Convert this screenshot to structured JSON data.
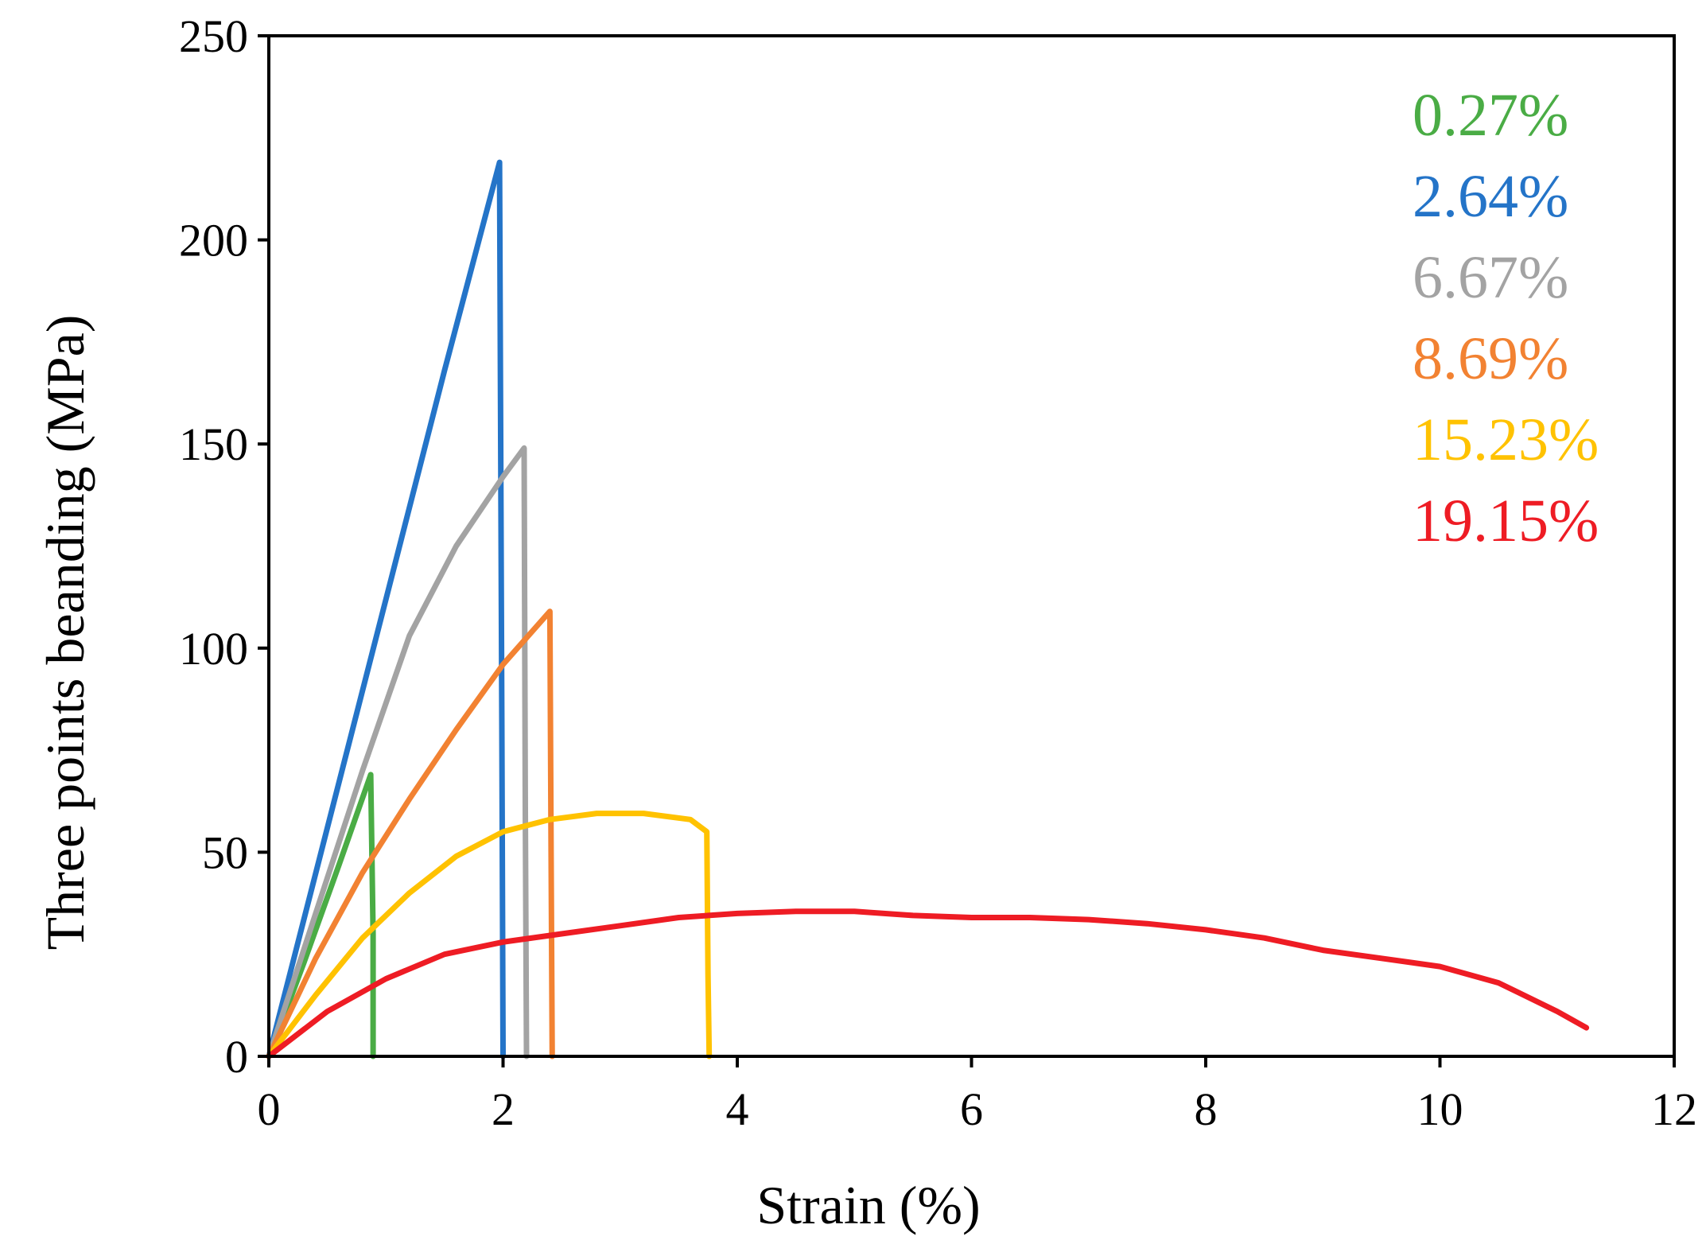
{
  "chart_data": {
    "type": "line",
    "title": "",
    "xlabel": "Strain (%)",
    "ylabel": "Three points beanding (MPa)",
    "xlim": [
      0,
      12
    ],
    "ylim": [
      0,
      250
    ],
    "xticks": [
      0,
      2,
      4,
      6,
      8,
      10,
      12
    ],
    "yticks": [
      0,
      50,
      100,
      150,
      200,
      250
    ],
    "xtick_labels": [
      "0",
      "2",
      "4",
      "6",
      "8",
      "10",
      "12"
    ],
    "ytick_labels": [
      "0",
      "50",
      "100",
      "150",
      "200",
      "250"
    ],
    "grid": false,
    "legend_position": "top-right",
    "series": [
      {
        "name": "0.27%",
        "color": "#4aac45",
        "x": [
          0,
          0.3,
          0.6,
          0.87,
          0.89,
          0.89
        ],
        "y": [
          0,
          23,
          47,
          69,
          30,
          0
        ]
      },
      {
        "name": "2.64%",
        "color": "#2474c8",
        "x": [
          0,
          0.5,
          1.0,
          1.5,
          1.97,
          1.99,
          2.0
        ],
        "y": [
          0,
          56,
          112,
          168,
          219,
          80,
          0
        ]
      },
      {
        "name": "6.67%",
        "color": "#a3a3a3",
        "x": [
          0,
          0.4,
          0.8,
          1.2,
          1.6,
          2.0,
          2.18,
          2.19,
          2.2
        ],
        "y": [
          0,
          35,
          70,
          103,
          125,
          142,
          149,
          60,
          0
        ]
      },
      {
        "name": "8.69%",
        "color": "#f28232",
        "x": [
          0,
          0.4,
          0.8,
          1.2,
          1.6,
          2.0,
          2.4,
          2.41,
          2.42
        ],
        "y": [
          0,
          24,
          45,
          63,
          80,
          96,
          109,
          50,
          0
        ]
      },
      {
        "name": "15.23%",
        "color": "#ffc200",
        "x": [
          0,
          0.4,
          0.8,
          1.2,
          1.6,
          2.0,
          2.4,
          2.8,
          3.2,
          3.6,
          3.74,
          3.75,
          3.76
        ],
        "y": [
          0,
          15,
          29,
          40,
          49,
          55,
          58,
          59.5,
          59.5,
          58,
          55,
          20,
          0
        ]
      },
      {
        "name": "19.15%",
        "color": "#ee1c24",
        "x": [
          0,
          0.5,
          1.0,
          1.5,
          2.0,
          2.5,
          3.0,
          3.5,
          4.0,
          4.5,
          5.0,
          5.5,
          6.0,
          6.5,
          7.0,
          7.5,
          8.0,
          8.5,
          9.0,
          9.5,
          10.0,
          10.5,
          11.0,
          11.25
        ],
        "y": [
          0,
          11,
          19,
          25,
          28,
          30,
          32,
          34,
          35,
          35.5,
          35.5,
          34.5,
          34,
          34,
          33.5,
          32.5,
          31,
          29,
          26,
          24,
          22,
          18,
          11,
          7
        ]
      }
    ]
  }
}
